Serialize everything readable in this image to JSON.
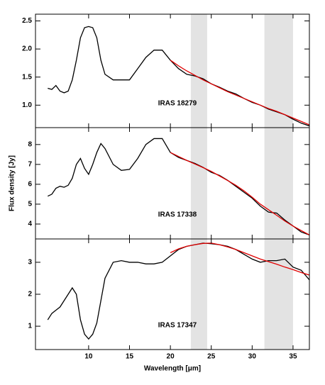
{
  "chart_data": [
    {
      "type": "line",
      "annotation": "IRAS 18279",
      "x": [
        5,
        5.5,
        6,
        6.5,
        7,
        7.5,
        8,
        8.5,
        9,
        9.5,
        10,
        10.5,
        11,
        11.5,
        12,
        13,
        14,
        15,
        16,
        17,
        18,
        19,
        20,
        21,
        22,
        23,
        24,
        25,
        26,
        27,
        28,
        29,
        30,
        31,
        32,
        33,
        34,
        35,
        36,
        37
      ],
      "series": [
        {
          "color": "#000000",
          "values": [
            1.3,
            1.28,
            1.35,
            1.25,
            1.22,
            1.25,
            1.45,
            1.8,
            2.2,
            2.38,
            2.4,
            2.38,
            2.2,
            1.8,
            1.55,
            1.45,
            1.45,
            1.45,
            1.65,
            1.85,
            1.98,
            1.98,
            1.8,
            1.65,
            1.55,
            1.52,
            1.47,
            1.38,
            1.32,
            1.25,
            1.2,
            1.12,
            1.05,
            1.0,
            0.93,
            0.88,
            0.83,
            0.75,
            0.68,
            0.63
          ]
        },
        {
          "color": "#e00000",
          "values": [
            null,
            null,
            null,
            null,
            null,
            null,
            null,
            null,
            null,
            null,
            null,
            null,
            null,
            null,
            null,
            null,
            null,
            null,
            null,
            null,
            null,
            null,
            1.8,
            1.7,
            1.61,
            1.53,
            1.45,
            1.38,
            1.31,
            1.24,
            1.18,
            1.12,
            1.06,
            1.0,
            0.94,
            0.89,
            0.83,
            0.77,
            0.71,
            0.65
          ]
        }
      ],
      "shaded_regions": [
        [
          22.5,
          24.5
        ],
        [
          31.5,
          35
        ]
      ],
      "shade_color": "#e3e3e3",
      "xlim": [
        3.5,
        37
      ],
      "xticks": [
        10,
        15,
        20,
        25,
        30,
        35
      ],
      "ylim": [
        0.6,
        2.62
      ],
      "yticks": [
        {
          "value": 1,
          "label": "1.0"
        },
        1.5,
        {
          "value": 2,
          "label": "2.0"
        },
        2.5
      ]
    },
    {
      "type": "line",
      "annotation": "IRAS 17338",
      "ylabel": "Flux density [Jy]",
      "x": [
        5,
        5.5,
        6,
        6.5,
        7,
        7.5,
        8,
        8.5,
        9,
        9.5,
        10,
        10.5,
        11,
        11.5,
        12,
        13,
        14,
        15,
        16,
        17,
        18,
        19,
        20,
        21,
        22,
        23,
        24,
        25,
        26,
        27,
        28,
        29,
        30,
        31,
        32,
        33,
        34,
        35,
        36,
        37
      ],
      "series": [
        {
          "color": "#000000",
          "values": [
            5.4,
            5.5,
            5.8,
            5.9,
            5.85,
            5.95,
            6.3,
            7.0,
            7.3,
            6.8,
            6.5,
            7.0,
            7.6,
            8.05,
            7.8,
            7.0,
            6.7,
            6.75,
            7.3,
            8.0,
            8.3,
            8.3,
            7.6,
            7.35,
            7.2,
            7.05,
            6.85,
            6.6,
            6.45,
            6.2,
            5.9,
            5.6,
            5.3,
            4.9,
            4.6,
            4.55,
            4.2,
            3.9,
            3.6,
            3.45
          ]
        },
        {
          "color": "#e00000",
          "values": [
            null,
            null,
            null,
            null,
            null,
            null,
            null,
            null,
            null,
            null,
            null,
            null,
            null,
            null,
            null,
            null,
            null,
            null,
            null,
            null,
            null,
            null,
            7.6,
            7.4,
            7.2,
            7.02,
            6.84,
            6.65,
            6.42,
            6.19,
            5.95,
            5.67,
            5.35,
            5.0,
            4.72,
            4.44,
            4.15,
            3.9,
            3.67,
            3.45
          ]
        }
      ],
      "shaded_regions": [
        [
          22.5,
          24.5
        ],
        [
          31.5,
          35
        ]
      ],
      "shade_color": "#e3e3e3",
      "xlim": [
        3.5,
        37
      ],
      "xticks": [
        10,
        15,
        20,
        25,
        30,
        35
      ],
      "ylim": [
        3.25,
        8.85
      ],
      "yticks": [
        4,
        5,
        6,
        7,
        8
      ]
    },
    {
      "type": "line",
      "annotation": "IRAS 17347",
      "xlabel": "Wavelength [μm]",
      "x": [
        5,
        5.5,
        6,
        6.5,
        7,
        7.5,
        8,
        8.5,
        9,
        9.5,
        10,
        10.5,
        11,
        11.5,
        12,
        13,
        14,
        15,
        16,
        17,
        18,
        19,
        20,
        21,
        22,
        23,
        24,
        25,
        26,
        27,
        28,
        29,
        30,
        31,
        32,
        33,
        34,
        35,
        36,
        37
      ],
      "series": [
        {
          "color": "#000000",
          "values": [
            1.2,
            1.4,
            1.5,
            1.6,
            1.8,
            2.0,
            2.2,
            2.0,
            1.2,
            0.75,
            0.6,
            0.75,
            1.1,
            1.8,
            2.5,
            3.0,
            3.05,
            3.0,
            3.0,
            2.95,
            2.95,
            3.0,
            3.2,
            3.4,
            3.5,
            3.55,
            3.6,
            3.58,
            3.55,
            3.5,
            3.4,
            3.25,
            3.1,
            3.0,
            3.05,
            3.05,
            3.1,
            2.85,
            2.75,
            2.45
          ]
        },
        {
          "color": "#e00000",
          "values": [
            null,
            null,
            null,
            null,
            null,
            null,
            null,
            null,
            null,
            null,
            null,
            null,
            null,
            null,
            null,
            null,
            null,
            null,
            null,
            null,
            null,
            null,
            3.3,
            3.42,
            3.5,
            3.55,
            3.59,
            3.6,
            3.55,
            3.48,
            3.4,
            3.3,
            3.2,
            3.1,
            3.02,
            2.94,
            2.85,
            2.77,
            2.68,
            2.6
          ]
        }
      ],
      "shaded_regions": [
        [
          22.5,
          24.5
        ],
        [
          31.5,
          35
        ]
      ],
      "shade_color": "#e3e3e3",
      "xlim": [
        3.5,
        37
      ],
      "xticks": [
        10,
        15,
        20,
        25,
        30,
        35
      ],
      "ylim": [
        0.27,
        3.73
      ],
      "yticks": [
        1,
        2,
        3
      ]
    }
  ]
}
